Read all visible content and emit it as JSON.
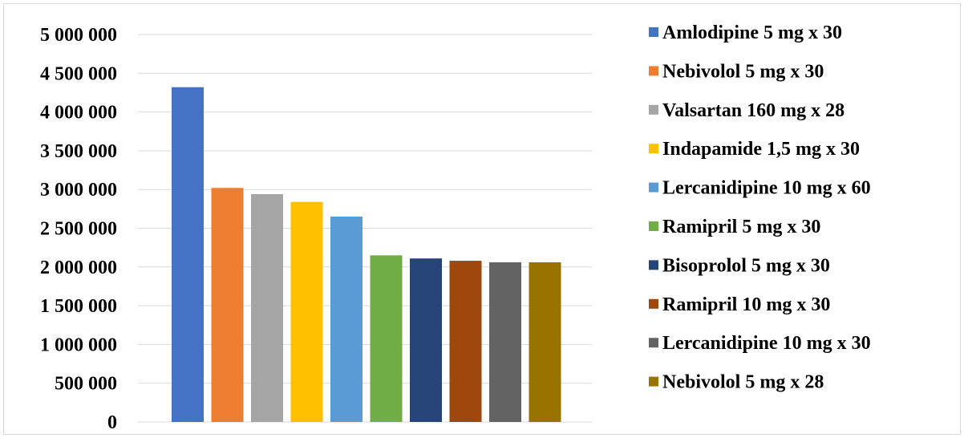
{
  "chart_data": {
    "type": "bar",
    "title": "",
    "xlabel": "",
    "ylabel": "",
    "ylim": [
      0,
      5000000
    ],
    "y_tick_values": [
      0,
      500000,
      1000000,
      1500000,
      2000000,
      2500000,
      3000000,
      3500000,
      4000000,
      4500000,
      5000000
    ],
    "y_tick_labels": [
      "0",
      "500 000",
      "1 000 000",
      "1 500 000",
      "2 000 000",
      "2 500 000",
      "3 000 000",
      "3 500 000",
      "4 000 000",
      "4 500 000",
      "5 000 000"
    ],
    "grid": true,
    "legend_position": "right",
    "series": [
      {
        "name": "Amlodipine 5 mg x 30",
        "value": 4320000,
        "color": "#4472C4"
      },
      {
        "name": "Nebivolol 5 mg x 30",
        "value": 3020000,
        "color": "#ED7D31"
      },
      {
        "name": "Valsartan 160 mg x 28",
        "value": 2940000,
        "color": "#A5A5A5"
      },
      {
        "name": "Indapamide 1,5 mg x 30",
        "value": 2840000,
        "color": "#FFC000"
      },
      {
        "name": "Lercanidipine 10 mg x 60",
        "value": 2650000,
        "color": "#5B9BD5"
      },
      {
        "name": "Ramipril 5 mg x 30",
        "value": 2150000,
        "color": "#70AD47"
      },
      {
        "name": "Bisoprolol 5 mg x 30",
        "value": 2110000,
        "color": "#264478"
      },
      {
        "name": "Ramipril 10 mg x 30",
        "value": 2080000,
        "color": "#9E480E"
      },
      {
        "name": "Lercanidipine 10 mg x 30",
        "value": 2060000,
        "color": "#636363"
      },
      {
        "name": "Nebivolol 5 mg x 28",
        "value": 2060000,
        "color": "#997300"
      }
    ],
    "gridline_color": "#D9D9D9"
  }
}
